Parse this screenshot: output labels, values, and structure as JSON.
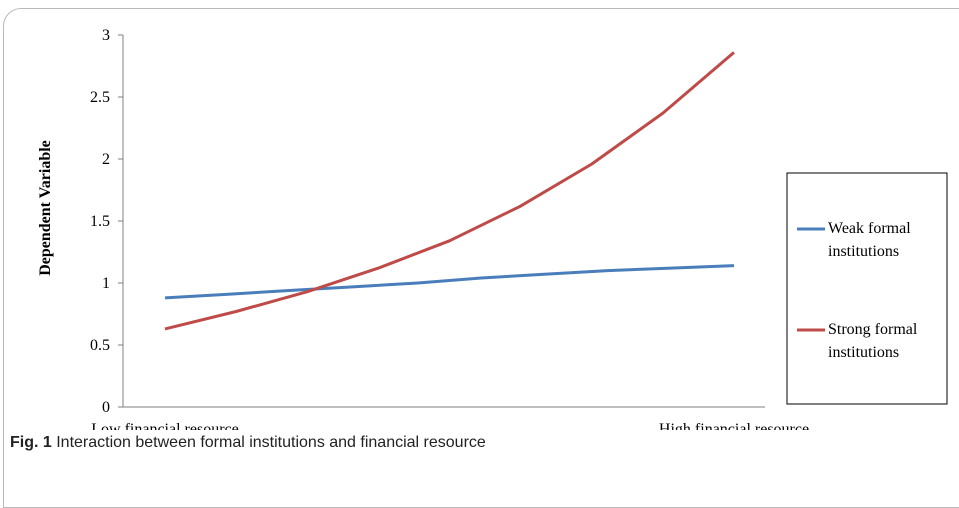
{
  "chart_data": {
    "type": "line",
    "title": "",
    "xlabel": "",
    "ylabel": "Dependent Variable",
    "categories": [
      "Low financial resource",
      "",
      "",
      "",
      "",
      "",
      "",
      "",
      "",
      "High financial resource"
    ],
    "ylim": [
      0,
      3
    ],
    "y_ticks": [
      "0",
      "0.5",
      "1",
      "1.5",
      "2",
      "2.5",
      "3"
    ],
    "grid": false,
    "legend_position": "right",
    "series": [
      {
        "name": "Weak formal institutions",
        "color": "#4a7ebb",
        "values": [
          0.88,
          0.91,
          0.94,
          0.97,
          1.0,
          1.04,
          1.07,
          1.1,
          1.12,
          1.14
        ]
      },
      {
        "name": "Strong formal institutions",
        "color": "#be4b48",
        "values": [
          0.63,
          0.77,
          0.93,
          1.12,
          1.34,
          1.62,
          1.96,
          2.37,
          2.86,
          2.86
        ]
      }
    ]
  },
  "legend": {
    "weak_line1": "Weak formal",
    "weak_line2": "institutions",
    "strong_line1": "Strong formal",
    "strong_line2": "institutions"
  },
  "caption": {
    "label": "Fig. 1",
    "text": " Interaction between formal institutions and financial resource"
  }
}
